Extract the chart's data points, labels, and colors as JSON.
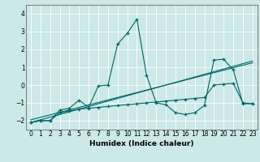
{
  "xlabel": "Humidex (Indice chaleur)",
  "bg_color": "#cce8e8",
  "line_color": "#006666",
  "grid_color": "#ffffff",
  "xlim": [
    -0.5,
    23.5
  ],
  "ylim": [
    -2.5,
    4.5
  ],
  "xtick_labels": [
    "0",
    "1",
    "2",
    "3",
    "4",
    "5",
    "6",
    "7",
    "8",
    "9",
    "10",
    "11",
    "12",
    "13",
    "14",
    "15",
    "16",
    "17",
    "18",
    "19",
    "20",
    "21",
    "22",
    "23"
  ],
  "xticks": [
    0,
    1,
    2,
    3,
    4,
    5,
    6,
    7,
    8,
    9,
    10,
    11,
    12,
    13,
    14,
    15,
    16,
    17,
    18,
    19,
    20,
    21,
    22,
    23
  ],
  "yticks": [
    -2,
    -1,
    0,
    1,
    2,
    3,
    4
  ],
  "series1_x": [
    0,
    1,
    2,
    3,
    4,
    5,
    6,
    7,
    8,
    9,
    10,
    11,
    12,
    13,
    14,
    15,
    16,
    17,
    18,
    19,
    20,
    21,
    22,
    23
  ],
  "series1_y": [
    -2.1,
    -2.0,
    -2.0,
    -1.4,
    -1.3,
    -0.85,
    -1.25,
    -0.05,
    0.0,
    2.3,
    2.9,
    3.7,
    0.55,
    -1.0,
    -1.1,
    -1.55,
    -1.65,
    -1.55,
    -1.15,
    1.4,
    1.45,
    0.85,
    -1.05,
    -1.05
  ],
  "series2_x": [
    0,
    1,
    2,
    3,
    4,
    5,
    6,
    7,
    8,
    9,
    10,
    11,
    12,
    13,
    14,
    15,
    16,
    17,
    18,
    19,
    20,
    21,
    22,
    23
  ],
  "series2_y": [
    -2.1,
    -2.0,
    -2.0,
    -1.55,
    -1.45,
    -1.35,
    -1.3,
    -1.25,
    -1.2,
    -1.15,
    -1.1,
    -1.05,
    -1.0,
    -0.95,
    -0.9,
    -0.85,
    -0.8,
    -0.75,
    -0.7,
    0.0,
    0.05,
    0.1,
    -1.0,
    -1.05
  ],
  "trend1_x": [
    0,
    23
  ],
  "trend1_y": [
    -2.1,
    1.35
  ],
  "trend2_x": [
    0,
    23
  ],
  "trend2_y": [
    -1.95,
    1.25
  ]
}
